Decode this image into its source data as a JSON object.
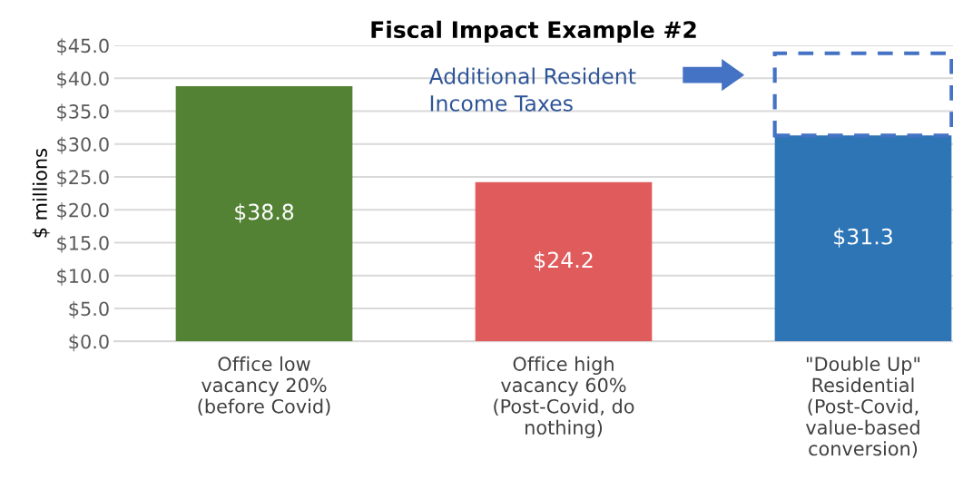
{
  "chart_data": {
    "type": "bar",
    "title": "Fiscal Impact Example #2",
    "ylabel": "$ millions",
    "categories": [
      "Office low\nvacancy 20%\n(before Covid)",
      "Office high\nvacancy 60%\n(Post-Covid, do\nnothing)",
      "\"Double Up\"\nResidential\n(Post-Covid,\nvalue-based\nconversion)"
    ],
    "stacked": true,
    "series": [
      {
        "colors": [
          "#548235",
          "#e05c5c",
          "#2e75b6"
        ],
        "values": [
          38.8,
          24.2,
          31.3
        ],
        "value_labels": [
          "$38.8",
          "$24.2",
          "$31.3"
        ]
      },
      {
        "color": "#4472c4",
        "values": [
          null,
          null,
          12.5
        ],
        "line_style": "dashed"
      }
    ],
    "ylim": [
      0,
      45
    ],
    "yticks": [
      {
        "value": 0,
        "label": "$0.0"
      },
      {
        "value": 5,
        "label": "$5.0"
      },
      {
        "value": 10,
        "label": "$10.0"
      },
      {
        "value": 15,
        "label": "$15.0"
      },
      {
        "value": 20,
        "label": "$20.0"
      },
      {
        "value": 25,
        "label": "$25.0"
      },
      {
        "value": 30,
        "label": "$30.0"
      },
      {
        "value": 35,
        "label": "$35.0"
      },
      {
        "value": 40,
        "label": "$40.0"
      },
      {
        "value": 45,
        "label": "$45.0"
      }
    ],
    "grid": "y",
    "legend": false,
    "annotations": [
      "Additional Resident\nIncome Taxes"
    ]
  }
}
